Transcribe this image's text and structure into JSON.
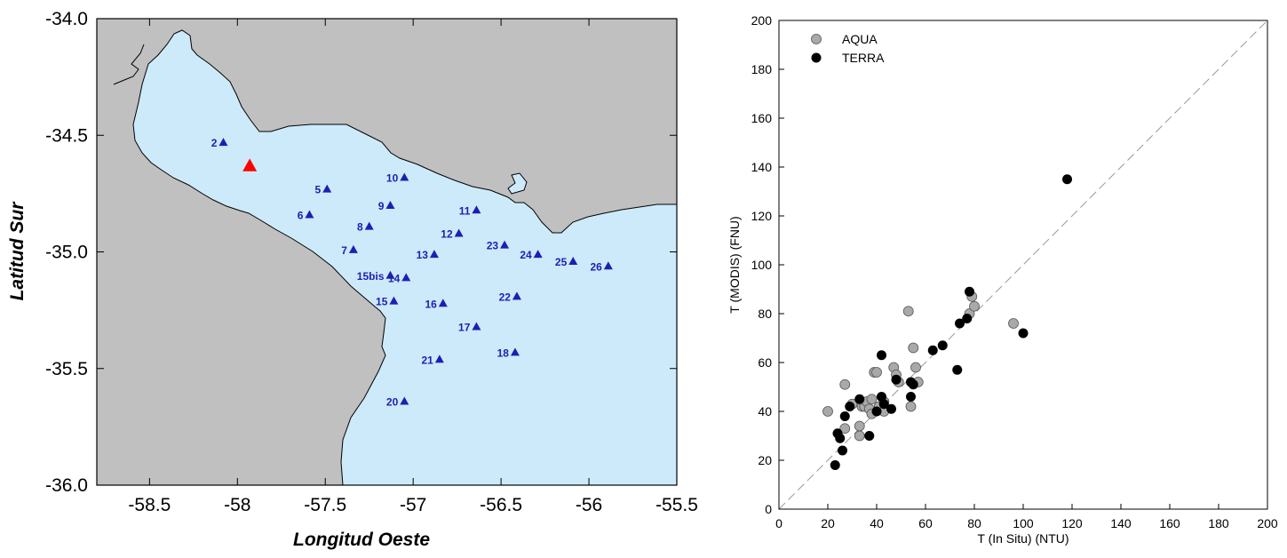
{
  "chart_data": [
    {
      "type": "map",
      "xlabel": "Longitud Oeste",
      "ylabel": "Latitud Sur",
      "xlim": [
        -58.8,
        -55.5
      ],
      "ylim": [
        -36.0,
        -34.0
      ],
      "x_ticks": [
        -58.5,
        -58.0,
        -57.5,
        -57.0,
        -56.5,
        -56.0,
        -55.5
      ],
      "x_tick_labels": [
        "-58.5",
        "-58",
        "-57.5",
        "-57",
        "-56.5",
        "-56",
        "-55.5"
      ],
      "y_ticks": [
        -34.0,
        -34.5,
        -35.0,
        -35.5,
        -36.0
      ],
      "y_tick_labels": [
        "-34.0",
        "-34.5",
        "-35.0",
        "-35.5",
        "-36.0"
      ],
      "colors": {
        "land": "#c0c0c0",
        "water": "#cdeafa",
        "station": "#1e1eb4",
        "reference": "#ff0000"
      },
      "reference_marker": {
        "lon": -57.93,
        "lat": -34.63
      },
      "stations": [
        {
          "label": "2",
          "lon": -58.08,
          "lat": -34.53
        },
        {
          "label": "5",
          "lon": -57.49,
          "lat": -34.73
        },
        {
          "label": "6",
          "lon": -57.59,
          "lat": -34.84
        },
        {
          "label": "7",
          "lon": -57.34,
          "lat": -34.99
        },
        {
          "label": "8",
          "lon": -57.25,
          "lat": -34.89
        },
        {
          "label": "9",
          "lon": -57.13,
          "lat": -34.8
        },
        {
          "label": "10",
          "lon": -57.05,
          "lat": -34.68
        },
        {
          "label": "11",
          "lon": -56.64,
          "lat": -34.82
        },
        {
          "label": "12",
          "lon": -56.74,
          "lat": -34.92
        },
        {
          "label": "13",
          "lon": -56.88,
          "lat": -35.01
        },
        {
          "label": "14",
          "lon": -57.04,
          "lat": -35.11
        },
        {
          "label": "15bis",
          "lon": -57.13,
          "lat": -35.1
        },
        {
          "label": "15",
          "lon": -57.11,
          "lat": -35.21
        },
        {
          "label": "16",
          "lon": -56.83,
          "lat": -35.22
        },
        {
          "label": "17",
          "lon": -56.64,
          "lat": -35.32
        },
        {
          "label": "18",
          "lon": -56.42,
          "lat": -35.43
        },
        {
          "label": "20",
          "lon": -57.05,
          "lat": -35.64
        },
        {
          "label": "21",
          "lon": -56.85,
          "lat": -35.46
        },
        {
          "label": "22",
          "lon": -56.41,
          "lat": -35.19
        },
        {
          "label": "23",
          "lon": -56.48,
          "lat": -34.97
        },
        {
          "label": "24",
          "lon": -56.29,
          "lat": -35.01
        },
        {
          "label": "25",
          "lon": -56.09,
          "lat": -35.04
        },
        {
          "label": "26",
          "lon": -55.89,
          "lat": -35.06
        }
      ]
    },
    {
      "type": "scatter",
      "xlabel": "T (In Situ) (NTU)",
      "ylabel": "T (MODIS) (FNU)",
      "xlim": [
        0,
        200
      ],
      "ylim": [
        0,
        200
      ],
      "x_ticks": [
        0,
        20,
        40,
        60,
        80,
        100,
        120,
        140,
        160,
        180,
        200
      ],
      "y_ticks": [
        0,
        20,
        40,
        60,
        80,
        100,
        120,
        140,
        160,
        180,
        200
      ],
      "identity_line": true,
      "legend_position": "top-left",
      "series": [
        {
          "name": "AQUA",
          "color": "#a9a9a9",
          "points": [
            [
              20,
              40
            ],
            [
              27,
              51
            ],
            [
              27,
              33
            ],
            [
              30,
              43
            ],
            [
              33,
              34
            ],
            [
              33,
              30
            ],
            [
              34,
              42
            ],
            [
              35,
              42
            ],
            [
              36,
              44
            ],
            [
              37,
              41
            ],
            [
              38,
              45
            ],
            [
              38,
              39
            ],
            [
              39,
              56
            ],
            [
              40,
              56
            ],
            [
              41,
              42
            ],
            [
              43,
              40
            ],
            [
              43,
              44
            ],
            [
              47,
              58
            ],
            [
              48,
              55
            ],
            [
              49,
              52
            ],
            [
              53,
              81
            ],
            [
              54,
              42
            ],
            [
              55,
              66
            ],
            [
              56,
              58
            ],
            [
              57,
              52
            ],
            [
              78,
              80
            ],
            [
              79,
              87
            ],
            [
              80,
              83
            ],
            [
              96,
              76
            ]
          ]
        },
        {
          "name": "TERRA",
          "color": "#000000",
          "points": [
            [
              23,
              18
            ],
            [
              24,
              31
            ],
            [
              25,
              29
            ],
            [
              26,
              24
            ],
            [
              27,
              38
            ],
            [
              29,
              42
            ],
            [
              33,
              45
            ],
            [
              37,
              30
            ],
            [
              40,
              40
            ],
            [
              42,
              63
            ],
            [
              42,
              46
            ],
            [
              43,
              43
            ],
            [
              46,
              41
            ],
            [
              48,
              53
            ],
            [
              54,
              46
            ],
            [
              54,
              52
            ],
            [
              55,
              51
            ],
            [
              63,
              65
            ],
            [
              67,
              67
            ],
            [
              73,
              57
            ],
            [
              74,
              76
            ],
            [
              77,
              78
            ],
            [
              78,
              89
            ],
            [
              100,
              72
            ],
            [
              118,
              135
            ]
          ]
        }
      ]
    }
  ]
}
